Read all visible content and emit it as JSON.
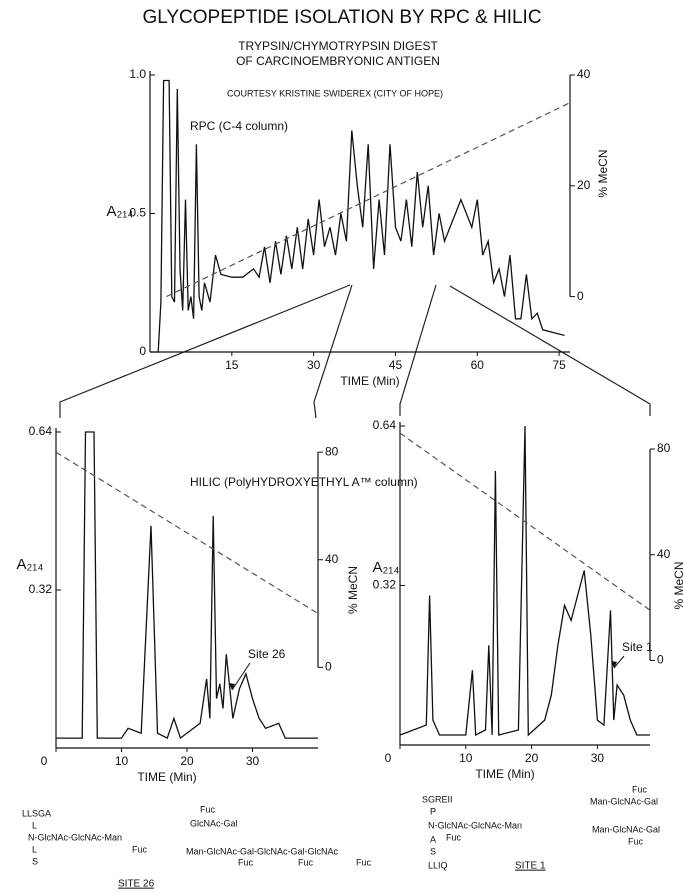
{
  "title": "GLYCOPEPTIDE ISOLATION BY RPC & HILIC",
  "subtitle": [
    "TRYPSIN/CHYMOTRYPSIN DIGEST",
    "OF CARCINOEMBRYONIC ANTIGEN"
  ],
  "credit": "COURTESY KRISTINE SWIDEREX (CITY OF HOPE)",
  "chart_data": [
    {
      "type": "line",
      "xlabel": "TIME (Min)",
      "ylabel": "A₂₁₄",
      "y2label": "% MeCN",
      "annotation": "RPC (C-4 column)",
      "xlim": [
        0,
        77
      ],
      "xticks": [
        15,
        30,
        45,
        60,
        75
      ],
      "ylim": [
        0,
        1
      ],
      "yticks": [
        0,
        0.5,
        {
          "value": 1,
          "label": "1.0"
        }
      ],
      "y2lim": [
        -10,
        40
      ],
      "y2ticks": [
        0,
        20,
        40
      ],
      "series": [
        {
          "color": "#111",
          "x": [
            0,
            1.5,
            2,
            2.5,
            3.5,
            4,
            4.5,
            5,
            5.5,
            6,
            6.5,
            7,
            7.5,
            8,
            8.5,
            9,
            9.5,
            10,
            11,
            12,
            13,
            15,
            17,
            19,
            20,
            21,
            22,
            23,
            24,
            25,
            26,
            27,
            28,
            29,
            30,
            31,
            32,
            33,
            34,
            35,
            36,
            37,
            38,
            39,
            40,
            41,
            42,
            43,
            44,
            45,
            46,
            47,
            48,
            49,
            50,
            51,
            52,
            53,
            54,
            55,
            56,
            57,
            58,
            59,
            60,
            61,
            62,
            63,
            64,
            65,
            66,
            67,
            68,
            69,
            70,
            71,
            72,
            74,
            76
          ],
          "values": [
            0,
            0,
            0.18,
            0.98,
            0.98,
            0.2,
            0.18,
            0.95,
            0.3,
            0.15,
            0.55,
            0.15,
            0.2,
            0.12,
            0.75,
            0.2,
            0.15,
            0.25,
            0.18,
            0.35,
            0.28,
            0.27,
            0.27,
            0.3,
            0.27,
            0.38,
            0.25,
            0.4,
            0.28,
            0.42,
            0.3,
            0.45,
            0.3,
            0.48,
            0.35,
            0.55,
            0.38,
            0.45,
            0.35,
            0.5,
            0.4,
            0.8,
            0.6,
            0.45,
            0.75,
            0.3,
            0.55,
            0.35,
            0.75,
            0.45,
            0.4,
            0.55,
            0.38,
            0.65,
            0.45,
            0.6,
            0.35,
            0.5,
            0.4,
            0.45,
            0.5,
            0.55,
            0.5,
            0.45,
            0.55,
            0.35,
            0.4,
            0.25,
            0.3,
            0.2,
            0.35,
            0.12,
            0.12,
            0.28,
            0.12,
            0.14,
            0.08,
            0.07,
            0.06
          ]
        },
        {
          "color": "#555",
          "dash": true,
          "axis": "y2",
          "x": [
            3,
            77
          ],
          "values": [
            0,
            35
          ]
        }
      ]
    },
    {
      "type": "line",
      "xlabel": "TIME (Min)",
      "ylabel": "A₂₁₄",
      "y2label": "% MeCN",
      "annotation": "HILIC (PolyHYDROXYETHYL A™ column)",
      "callout": "Site 26",
      "xlim": [
        0,
        40
      ],
      "xticks": [
        0,
        10,
        20,
        30
      ],
      "ylim": [
        0,
        0.64
      ],
      "yticks": [
        0.32,
        0.64
      ],
      "y2lim": [
        -30,
        87.5
      ],
      "y2ticks": [
        0,
        40,
        80
      ],
      "series": [
        {
          "color": "#111",
          "x": [
            0,
            4,
            4.5,
            5.8,
            6.3,
            10,
            11,
            13,
            14.5,
            15.5,
            17,
            18,
            19,
            22,
            23,
            23.5,
            24,
            24.5,
            25,
            25.5,
            26,
            27,
            28,
            29,
            30,
            31,
            32,
            34,
            35,
            40
          ],
          "values": [
            0.02,
            0.02,
            0.64,
            0.64,
            0.02,
            0.02,
            0.04,
            0.03,
            0.45,
            0.03,
            0.02,
            0.06,
            0.02,
            0.05,
            0.14,
            0.06,
            0.47,
            0.1,
            0.13,
            0.08,
            0.19,
            0.06,
            0.12,
            0.15,
            0.1,
            0.06,
            0.04,
            0.05,
            0.02,
            0.02
          ]
        },
        {
          "color": "#555",
          "dash": true,
          "axis": "y2",
          "x": [
            0,
            40
          ],
          "values": [
            80,
            20
          ]
        }
      ]
    },
    {
      "type": "line",
      "xlabel": "TIME (Min)",
      "ylabel": "A₂₁₄",
      "y2label": "% MeCN",
      "callout": "Site 1",
      "xlim": [
        0,
        38
      ],
      "xticks": [
        0,
        10,
        20,
        30
      ],
      "ylim": [
        0,
        0.64
      ],
      "yticks": [
        0.32,
        0.64
      ],
      "y2lim": [
        -32,
        88.7
      ],
      "y2ticks": [
        0,
        40,
        80
      ],
      "series": [
        {
          "color": "#111",
          "x": [
            0,
            4,
            4.5,
            5,
            6,
            10,
            11,
            11.5,
            13,
            13.5,
            14,
            14.5,
            15,
            18,
            19,
            19.5,
            22,
            23,
            24,
            25,
            26,
            27,
            28,
            29,
            30,
            31,
            32,
            32.5,
            33,
            34,
            35,
            36,
            38
          ],
          "values": [
            0.02,
            0.04,
            0.3,
            0.05,
            0.02,
            0.02,
            0.15,
            0.02,
            0.03,
            0.2,
            0.02,
            0.55,
            0.02,
            0.03,
            0.64,
            0.02,
            0.05,
            0.1,
            0.2,
            0.28,
            0.25,
            0.3,
            0.35,
            0.22,
            0.05,
            0.04,
            0.27,
            0.05,
            0.12,
            0.1,
            0.05,
            0.02,
            0.02
          ]
        },
        {
          "color": "#555",
          "dash": true,
          "axis": "y2",
          "x": [
            0,
            38
          ],
          "values": [
            86,
            19
          ]
        }
      ]
    }
  ],
  "site26": [
    "LLSGA",
    "L",
    "N-GlcNAc-GlcNAc-Man",
    "L",
    "S",
    "Fuc",
    "Fuc",
    "GlcNAc-Gal",
    "Man-GlcNAc-Gal-GlcNAc-Gal-GlcNAc",
    "Fuc",
    "Fuc",
    "Fuc",
    "SITE 26"
  ],
  "site1": [
    "SGREII",
    "P",
    "N-GlcNAc-GlcNAc-Man",
    "A",
    "Fuc",
    "S",
    "LLIQ",
    "SITE 1",
    "Fuc",
    "Man-GlcNAc-Gal",
    "Man-GlcNAc-Gal",
    "Fuc"
  ]
}
